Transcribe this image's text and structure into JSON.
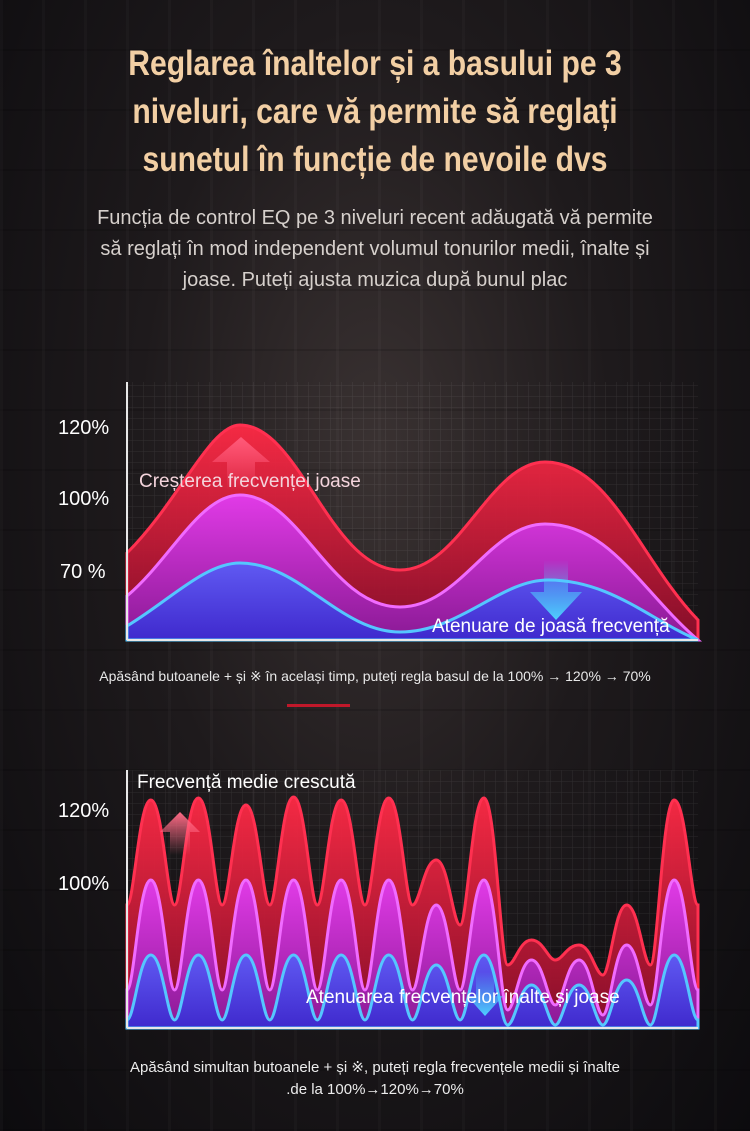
{
  "title_lines": [
    "Reglarea înaltelor și a basului pe 3",
    "niveluri, care vă permite să reglați",
    "sunetul în funcție de nevoile dvs"
  ],
  "intro_lines": [
    "Funcția de control EQ pe 3 niveluri recent adăugată vă permite",
    "să reglați în mod independent volumul tonurilor medii, înalte și",
    "joase. Puteți ajusta muzica după bunul plac"
  ],
  "chart_data": [
    {
      "type": "area",
      "ytick_labels": [
        "120%",
        "100%",
        "70 %"
      ],
      "series": [
        {
          "level": "120%",
          "color": "#ff2a45"
        },
        {
          "level": "100%",
          "color": "#e23cf0"
        },
        {
          "level": "70 %",
          "color": "#4fb6ff"
        }
      ],
      "annotations": [
        "Creșterea frecvenței joase",
        "Atenuare de joasă frecvență"
      ],
      "grid": true
    },
    {
      "type": "area",
      "ytick_labels": [
        "120%",
        "100%"
      ],
      "series": [
        {
          "level": "120%",
          "color": "#ff2a45"
        },
        {
          "level": "100%",
          "color": "#e23cf0"
        },
        {
          "level": "70%",
          "color": "#4fb6ff"
        }
      ],
      "annotations": [
        "Frecvență medie crescută",
        "Atenuarea frecvențelor înalte și joase"
      ],
      "grid": true
    }
  ],
  "caption1": "Apăsând butoanele + și ※ în același timp, puteți regla basul de la 100% → 120% → 70%",
  "caption2_lines": [
    "Apăsând simultan butoanele + și ※, puteți regla frecvențele medii și înalte",
    ".de la 100%→120%→70%"
  ]
}
